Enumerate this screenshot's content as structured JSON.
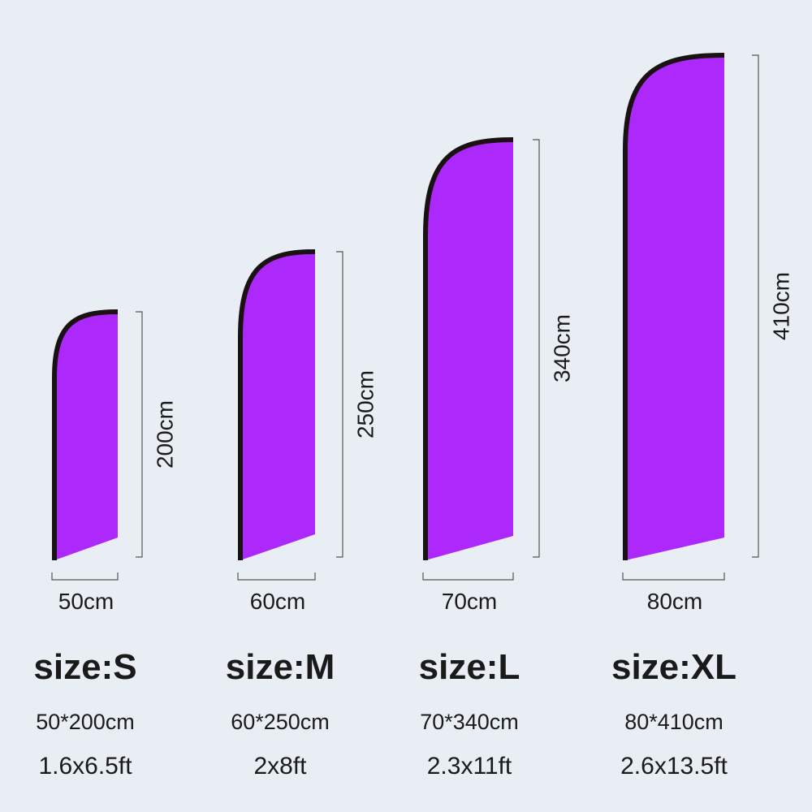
{
  "flags": [
    {
      "height_label": "200cm",
      "width_label": "50cm",
      "size": "size:S",
      "cm": "50*200cm",
      "ft": "1.6x6.5ft"
    },
    {
      "height_label": "250cm",
      "width_label": "60cm",
      "size": "size:M",
      "cm": "60*250cm",
      "ft": "2x8ft"
    },
    {
      "height_label": "340cm",
      "width_label": "70cm",
      "size": "size:L",
      "cm": "70*340cm",
      "ft": "2.3x11ft"
    },
    {
      "height_label": "410cm",
      "width_label": "80cm",
      "size": "size:XL",
      "cm": "80*410cm",
      "ft": "2.6x13.5ft"
    }
  ]
}
